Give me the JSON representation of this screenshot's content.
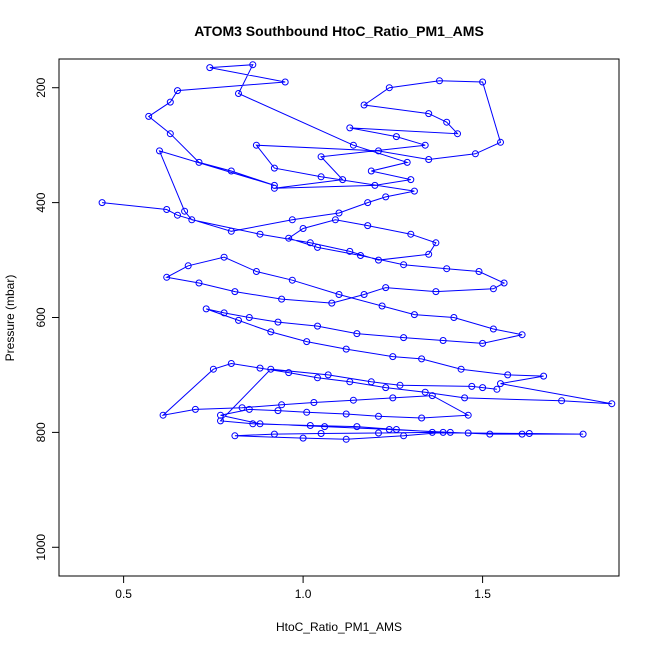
{
  "chart_data": {
    "type": "line",
    "title": "ATOM3 Southbound HtoC_Ratio_PM1_AMS",
    "xlabel": "HtoC_Ratio_PM1_AMS",
    "ylabel": "Pressure (mbar)",
    "xlim": [
      0.32,
      1.88
    ],
    "ylim": [
      1050,
      150
    ],
    "y_reversed": true,
    "x_ticks": [
      {
        "value": 0.5,
        "label": "0.5"
      },
      {
        "value": 1.0,
        "label": "1.0"
      },
      {
        "value": 1.5,
        "label": "1.5"
      }
    ],
    "y_ticks": [
      {
        "value": 200,
        "label": "200"
      },
      {
        "value": 400,
        "label": "400"
      },
      {
        "value": 600,
        "label": "600"
      },
      {
        "value": 800,
        "label": "800"
      },
      {
        "value": 1000,
        "label": "1000"
      }
    ],
    "grid": false,
    "legend": "none",
    "series_color": "#0000ff",
    "series": [
      {
        "marker": "open-circle",
        "x": [
          0.44,
          0.62,
          0.65,
          0.8,
          0.97,
          1.1,
          1.18,
          1.23,
          1.31,
          1.05,
          0.92,
          0.87,
          1.21,
          1.35,
          1.48,
          1.55,
          1.5,
          1.38,
          1.24,
          1.17,
          1.35,
          1.4,
          1.43,
          1.13,
          1.26,
          1.34,
          1.05,
          1.11,
          0.92,
          1.2,
          1.3,
          1.19,
          1.29,
          1.14,
          0.82,
          0.86,
          0.74,
          0.95,
          0.65,
          0.63,
          0.57,
          0.63,
          0.71,
          0.8,
          0.92,
          0.6,
          0.67,
          0.69,
          0.88,
          1.02,
          1.13,
          1.21,
          1.35,
          1.37,
          1.3,
          1.18,
          1.09,
          1.0,
          0.96,
          1.04,
          1.16,
          1.28,
          1.4,
          1.49,
          1.56,
          1.53,
          1.37,
          1.23,
          1.17,
          1.08,
          0.94,
          0.81,
          0.71,
          0.62,
          0.68,
          0.78,
          0.87,
          0.97,
          1.1,
          1.22,
          1.31,
          1.42,
          1.53,
          1.61,
          1.5,
          1.39,
          1.28,
          1.15,
          1.04,
          0.93,
          0.85,
          0.78,
          0.73,
          0.82,
          0.91,
          1.01,
          1.12,
          1.25,
          1.33,
          1.44,
          1.57,
          1.67,
          1.55,
          1.86,
          1.72,
          1.45,
          1.34,
          1.23,
          1.13,
          1.04,
          0.96,
          0.88,
          0.8,
          0.75,
          0.61,
          0.7,
          0.83,
          0.94,
          1.03,
          1.14,
          1.25,
          1.36,
          1.46,
          1.33,
          1.21,
          1.12,
          1.01,
          0.93,
          0.85,
          0.77,
          0.88,
          1.06,
          1.24,
          1.41,
          1.52,
          1.61,
          1.78,
          1.63,
          1.46,
          1.36,
          1.21,
          1.05,
          0.92,
          0.81,
          1.0,
          1.12,
          1.28,
          1.39,
          1.26,
          1.15,
          1.02,
          0.86,
          0.77,
          0.91,
          1.07,
          1.19,
          1.27,
          1.47,
          1.5,
          1.54
        ],
        "y": [
          400,
          412,
          422,
          450,
          430,
          418,
          400,
          390,
          380,
          355,
          340,
          300,
          310,
          325,
          315,
          295,
          190,
          188,
          200,
          230,
          245,
          260,
          280,
          270,
          285,
          300,
          320,
          360,
          375,
          370,
          360,
          345,
          330,
          300,
          210,
          160,
          165,
          190,
          205,
          225,
          250,
          280,
          330,
          345,
          370,
          310,
          415,
          430,
          455,
          470,
          485,
          500,
          490,
          470,
          455,
          440,
          430,
          445,
          462,
          478,
          492,
          508,
          515,
          520,
          540,
          550,
          555,
          548,
          560,
          575,
          568,
          555,
          540,
          530,
          510,
          495,
          520,
          535,
          560,
          580,
          595,
          600,
          620,
          630,
          645,
          640,
          635,
          628,
          615,
          608,
          600,
          592,
          585,
          605,
          625,
          642,
          655,
          668,
          672,
          690,
          700,
          702,
          715,
          750,
          745,
          740,
          730,
          722,
          712,
          705,
          696,
          688,
          680,
          690,
          770,
          760,
          757,
          752,
          748,
          744,
          740,
          736,
          770,
          775,
          772,
          768,
          765,
          762,
          760,
          770,
          785,
          790,
          795,
          800,
          803,
          803,
          803,
          802,
          801,
          800,
          801,
          802,
          803,
          806,
          810,
          812,
          806,
          800,
          795,
          790,
          788,
          785,
          780,
          690,
          700,
          712,
          718,
          720,
          722,
          725
        ]
      }
    ]
  }
}
